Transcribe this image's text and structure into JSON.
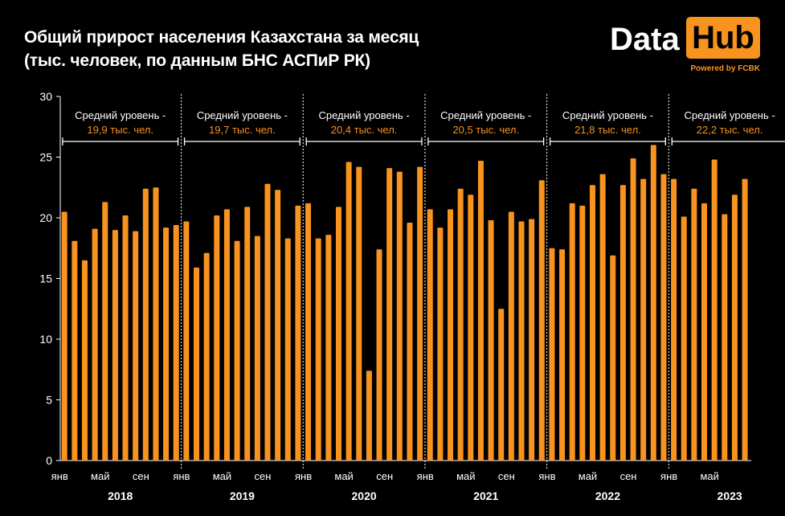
{
  "header": {
    "title_line1": "Общий прирост населения Казахстана за месяц",
    "title_line2": "(тыс. человек, по данным БНС АСПиР РК)"
  },
  "logo": {
    "word1": "Data",
    "word2": "Hub",
    "tagline": "Powered by FCBK"
  },
  "colors": {
    "bar": "#f7931e",
    "background": "#000000",
    "text": "#ffffff",
    "accent": "#f7931e"
  },
  "chart_data": {
    "type": "bar",
    "title": "Общий прирост населения Казахстана за месяц",
    "subtitle": "(тыс. человек, по данным БНС АСПиР РК)",
    "ylim": [
      0,
      30
    ],
    "yticks": [
      0,
      5,
      10,
      15,
      20,
      25,
      30
    ],
    "grid": false,
    "x_tick_labels": [
      "янв",
      "май",
      "сен"
    ],
    "years": [
      {
        "year": "2018",
        "avg_label": "Средний уровень -",
        "avg_value": "19,9 тыс. чел.",
        "values": [
          20.5,
          18.1,
          16.5,
          19.1,
          21.3,
          19.0,
          20.2,
          18.9,
          22.4,
          22.5,
          19.2,
          19.4
        ]
      },
      {
        "year": "2019",
        "avg_label": "Средний уровень -",
        "avg_value": "19,7 тыс. чел.",
        "values": [
          19.7,
          15.9,
          17.1,
          20.2,
          20.7,
          18.1,
          20.9,
          18.5,
          22.8,
          22.3,
          18.3,
          21.0
        ]
      },
      {
        "year": "2020",
        "avg_label": "Средний уровень -",
        "avg_value": "20,4 тыс. чел.",
        "values": [
          21.2,
          18.3,
          18.6,
          20.9,
          24.6,
          24.2,
          7.4,
          17.4,
          24.1,
          23.8,
          19.6,
          24.2
        ]
      },
      {
        "year": "2021",
        "avg_label": "Средний уровень -",
        "avg_value": "20,5 тыс. чел.",
        "values": [
          20.7,
          19.2,
          20.7,
          22.4,
          21.9,
          24.7,
          19.8,
          12.5,
          20.5,
          19.7,
          19.9,
          23.1
        ]
      },
      {
        "year": "2022",
        "avg_label": "Средний уровень -",
        "avg_value": "21,8 тыс. чел.",
        "values": [
          17.5,
          17.4,
          21.2,
          21.0,
          22.7,
          23.6,
          16.9,
          22.7,
          24.9,
          23.2,
          26.0,
          23.6
        ]
      },
      {
        "year": "2023",
        "avg_label": "Средний уровень -",
        "avg_value": "22,2 тыс. чел.",
        "values": [
          23.2,
          20.1,
          22.4,
          21.2,
          24.8,
          20.3,
          21.9,
          23.2
        ]
      }
    ]
  }
}
